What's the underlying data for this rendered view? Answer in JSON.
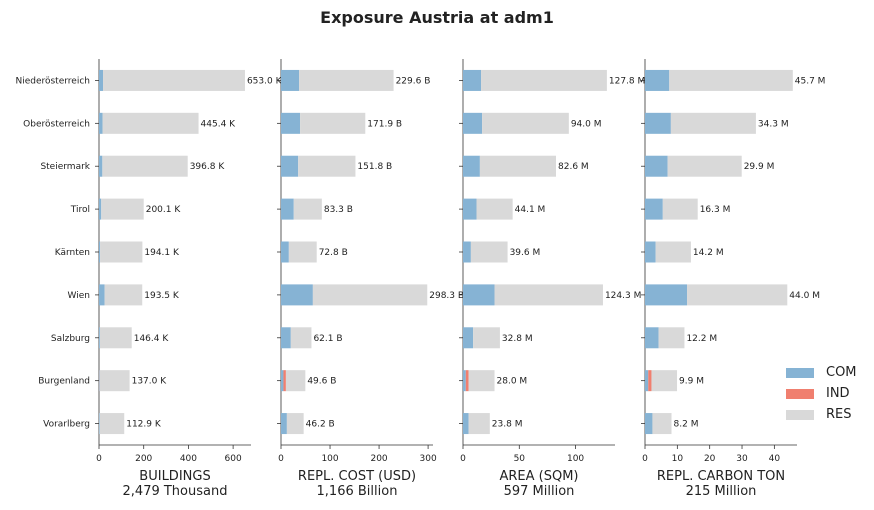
{
  "title": "Exposure Austria at adm1",
  "colors": {
    "COM": "#86b3d4",
    "IND": "#f07f6f",
    "RES": "#d9d9d9"
  },
  "legend": [
    "COM",
    "IND",
    "RES"
  ],
  "chart_data": {
    "type": "bar",
    "orientation": "horizontal-stacked",
    "title": "Exposure Austria at adm1",
    "categories": [
      "Niederösterreich",
      "Oberösterreich",
      "Steiermark",
      "Tirol",
      "Kärnten",
      "Wien",
      "Salzburg",
      "Burgenland",
      "Vorarlberg"
    ],
    "panels": [
      {
        "xlabel": "BUILDINGS",
        "total": "2,479 Thousand",
        "xlim": [
          0,
          680
        ],
        "xticks": [
          0,
          200,
          400,
          600
        ],
        "labels": [
          "653.0 K",
          "445.4 K",
          "396.8 K",
          "200.1 K",
          "194.1 K",
          "193.5 K",
          "146.4 K",
          "137.0 K",
          "112.9 K"
        ],
        "series": [
          {
            "name": "COM",
            "values": [
              18,
              16,
              15,
              10,
              5,
              25,
              4,
              2,
              3
            ]
          },
          {
            "name": "IND",
            "values": [
              0,
              0,
              0,
              0,
              0,
              0,
              0,
              1,
              0
            ]
          },
          {
            "name": "RES",
            "values": [
              635,
              429.4,
              381.8,
              190.1,
              189.1,
              168.5,
              142.4,
              134,
              109.9
            ]
          }
        ]
      },
      {
        "xlabel": "REPL. COST (USD)",
        "total": "1,166 Billion",
        "xlim": [
          0,
          310
        ],
        "xticks": [
          0,
          100,
          200,
          300
        ],
        "labels": [
          "229.6 B",
          "171.9 B",
          "151.8 B",
          "83.3 B",
          "72.8 B",
          "298.3 B",
          "62.1 B",
          "49.6 B",
          "46.2 B"
        ],
        "series": [
          {
            "name": "COM",
            "values": [
              37,
              39,
              35,
              26,
              16,
              65,
              20,
              5,
              12
            ]
          },
          {
            "name": "IND",
            "values": [
              0,
              0,
              0,
              0,
              0,
              0,
              0,
              5,
              0
            ]
          },
          {
            "name": "RES",
            "values": [
              192.6,
              132.9,
              116.8,
              57.3,
              56.8,
              233.3,
              42.1,
              39.6,
              34.2
            ]
          }
        ]
      },
      {
        "xlabel": "AREA (SQM)",
        "total": "597 Million",
        "xlim": [
          0,
          135
        ],
        "xticks": [
          0,
          50,
          100
        ],
        "labels": [
          "127.8 M",
          "94.0 M",
          "82.6 M",
          "44.1 M",
          "39.6 M",
          "124.3 M",
          "32.8 M",
          "28.0 M",
          "23.8 M"
        ],
        "series": [
          {
            "name": "COM",
            "values": [
              16,
              17,
              15,
              12,
              7,
              28,
              9,
              2.5,
              5
            ]
          },
          {
            "name": "IND",
            "values": [
              0,
              0,
              0,
              0,
              0,
              0,
              0,
              2.5,
              0
            ]
          },
          {
            "name": "RES",
            "values": [
              111.8,
              77,
              67.6,
              32.1,
              32.6,
              96.3,
              23.8,
              23,
              18.8
            ]
          }
        ]
      },
      {
        "xlabel": "REPL. CARBON TON",
        "total": "215 Million",
        "xlim": [
          0,
          47
        ],
        "xticks": [
          0,
          10,
          20,
          30,
          40
        ],
        "labels": [
          "45.7 M",
          "34.3 M",
          "29.9 M",
          "16.3 M",
          "14.2 M",
          "44.0 M",
          "12.2 M",
          "9.9 M",
          "8.2 M"
        ],
        "series": [
          {
            "name": "COM",
            "values": [
              7.5,
              8,
              7,
              5.5,
              3.3,
              13,
              4.2,
              1,
              2.3
            ]
          },
          {
            "name": "IND",
            "values": [
              0,
              0,
              0,
              0,
              0,
              0,
              0,
              1,
              0
            ]
          },
          {
            "name": "RES",
            "values": [
              38.2,
              26.3,
              22.9,
              10.8,
              10.9,
              31,
              8,
              7.9,
              5.9
            ]
          }
        ]
      }
    ]
  }
}
